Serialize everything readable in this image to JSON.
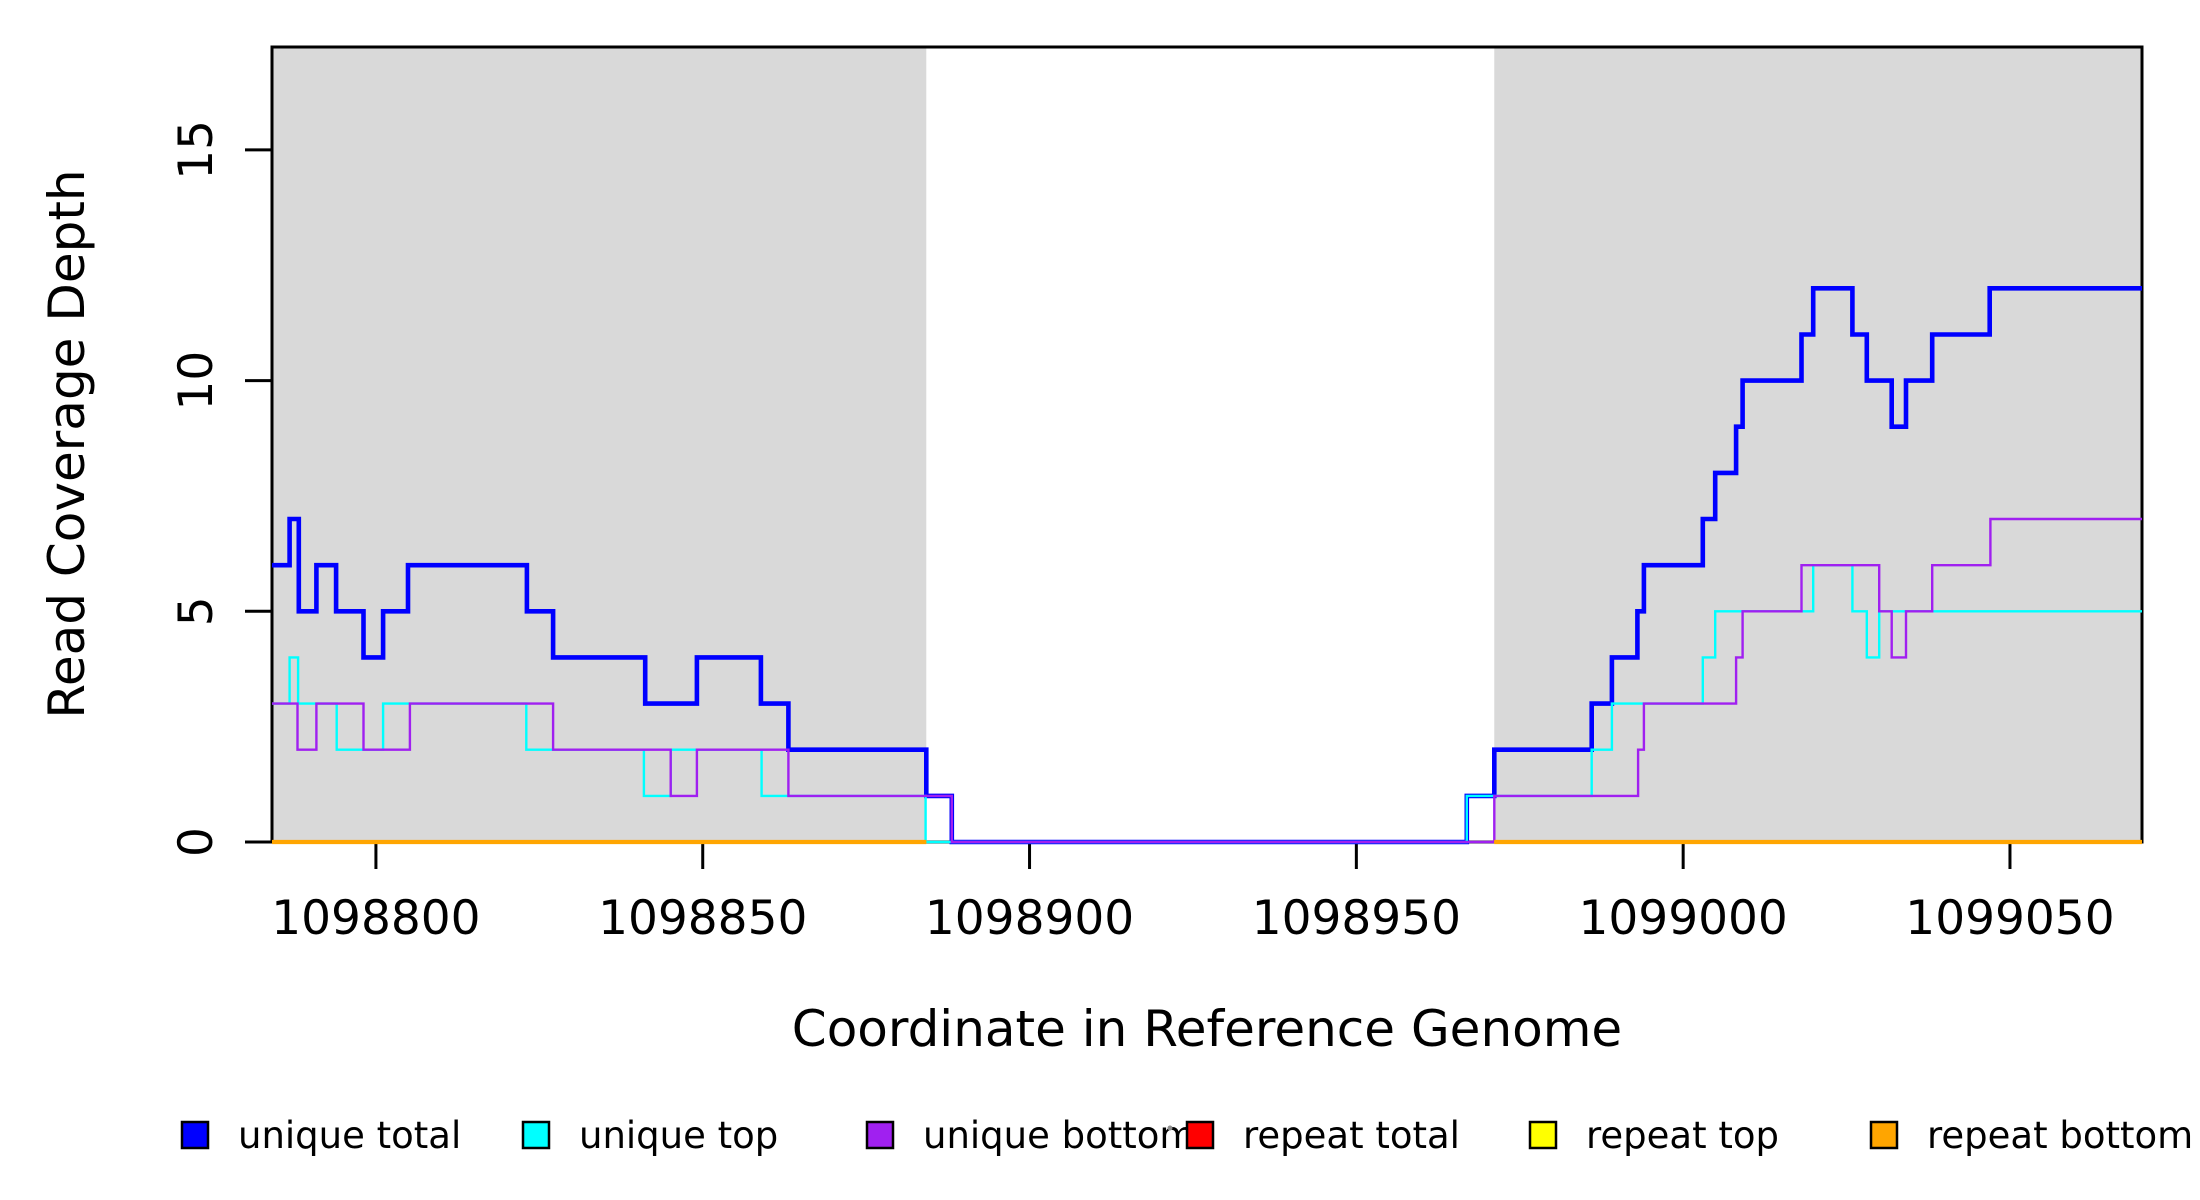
{
  "chart_data": {
    "type": "line",
    "subtype": "step",
    "title": "",
    "xlabel": "Coordinate in Reference Genome",
    "ylabel": "Read Coverage Depth",
    "xlim": [
      1098784.1,
      1099070.2
    ],
    "ylim": [
      0,
      17.23
    ],
    "x_ticks": [
      1098800,
      1098850,
      1098900,
      1098950,
      1099000,
      1099050
    ],
    "y_ticks": [
      0,
      5,
      10,
      15
    ],
    "grid": false,
    "legend_position": "bottom",
    "background_color": "#FFFFFF",
    "shading_color": "#D9D9D9",
    "shaded_regions": [
      {
        "x0": 1098784.1,
        "x1": 1098884.2
      },
      {
        "x0": 1098971.1,
        "x1": 1099070.2
      }
    ],
    "series": [
      {
        "name": "unique total",
        "color": "#0000FF",
        "line_width": 4.6,
        "steps": [
          [
            1098784.1,
            6
          ],
          [
            1098786.8,
            7
          ],
          [
            1098788.2,
            5
          ],
          [
            1098790.9,
            6
          ],
          [
            1098793.9,
            5
          ],
          [
            1098798.1,
            4
          ],
          [
            1098801.1,
            5
          ],
          [
            1098804.9,
            6
          ],
          [
            1098823.1,
            5
          ],
          [
            1098827.1,
            4
          ],
          [
            1098841.2,
            3
          ],
          [
            1098849.1,
            4
          ],
          [
            1098858.9,
            3
          ],
          [
            1098863.1,
            2
          ],
          [
            1098884.2,
            1
          ],
          [
            1098888.1,
            0
          ],
          [
            1098966.9,
            1
          ],
          [
            1098971.1,
            2
          ],
          [
            1098986.0,
            3
          ],
          [
            1098989.1,
            4
          ],
          [
            1098993.0,
            5
          ],
          [
            1098994.0,
            6
          ],
          [
            1099003.0,
            7
          ],
          [
            1099004.9,
            8
          ],
          [
            1099008.1,
            9
          ],
          [
            1099009.1,
            10
          ],
          [
            1099018.1,
            11
          ],
          [
            1099019.9,
            12
          ],
          [
            1099025.9,
            11
          ],
          [
            1099028.1,
            10
          ],
          [
            1099031.9,
            9
          ],
          [
            1099034.1,
            10
          ],
          [
            1099038.1,
            11
          ],
          [
            1099046.9,
            12
          ]
        ]
      },
      {
        "name": "unique top",
        "color": "#00FFFF",
        "line_width": 2.4,
        "steps": [
          [
            1098784.1,
            3
          ],
          [
            1098786.8,
            4
          ],
          [
            1098788.1,
            3
          ],
          [
            1098794.0,
            2
          ],
          [
            1098801.1,
            3
          ],
          [
            1098823.0,
            2
          ],
          [
            1098841.0,
            1
          ],
          [
            1098845.1,
            2
          ],
          [
            1098859.0,
            1
          ],
          [
            1098884.1,
            0
          ],
          [
            1098966.9,
            1
          ],
          [
            1098986.0,
            2
          ],
          [
            1098989.1,
            3
          ],
          [
            1099003.0,
            4
          ],
          [
            1099004.9,
            5
          ],
          [
            1099019.9,
            6
          ],
          [
            1099025.9,
            5
          ],
          [
            1099028.1,
            4
          ],
          [
            1099030.0,
            5
          ]
        ]
      },
      {
        "name": "unique bottom",
        "color": "#A020F0",
        "line_width": 2.4,
        "steps": [
          [
            1098784.1,
            3
          ],
          [
            1098788.0,
            2
          ],
          [
            1098790.9,
            3
          ],
          [
            1098798.1,
            2
          ],
          [
            1098805.2,
            3
          ],
          [
            1098827.1,
            2
          ],
          [
            1098845.1,
            1
          ],
          [
            1098849.1,
            2
          ],
          [
            1098863.1,
            1
          ],
          [
            1098888.1,
            0
          ],
          [
            1098971.1,
            1
          ],
          [
            1098993.1,
            2
          ],
          [
            1098994.0,
            3
          ],
          [
            1099008.1,
            4
          ],
          [
            1099009.1,
            5
          ],
          [
            1099018.1,
            6
          ],
          [
            1099030.0,
            5
          ],
          [
            1099031.9,
            4
          ],
          [
            1099034.1,
            5
          ],
          [
            1099038.1,
            6
          ],
          [
            1099047.0,
            7
          ]
        ]
      },
      {
        "name": "repeat total",
        "color": "#FF0000",
        "line_width": 2.4,
        "value": 0,
        "regions": [
          [
            1098784.1,
            1098884.2
          ],
          [
            1098971.1,
            1099070.2
          ]
        ]
      },
      {
        "name": "repeat top",
        "color": "#FFFF00",
        "line_width": 2.4,
        "value": 0,
        "regions": [
          [
            1098784.1,
            1098884.2
          ],
          [
            1098971.1,
            1099070.2
          ]
        ]
      },
      {
        "name": "repeat bottom",
        "color": "#FFA500",
        "line_width": 4.2,
        "value": 0,
        "regions": [
          [
            1098784.1,
            1098884.2
          ],
          [
            1098971.1,
            1099070.2
          ]
        ]
      }
    ],
    "legend": {
      "items": [
        {
          "label": "unique total",
          "color": "#0000FF"
        },
        {
          "label": "unique top",
          "color": "#00FFFF"
        },
        {
          "label": "unique bottom",
          "color": "#A020F0"
        },
        {
          "label": "repeat total",
          "color": "#FF0000"
        },
        {
          "label": "repeat top",
          "color": "#FFFF00"
        },
        {
          "label": "repeat bottom",
          "color": "#FFA500"
        }
      ]
    }
  }
}
